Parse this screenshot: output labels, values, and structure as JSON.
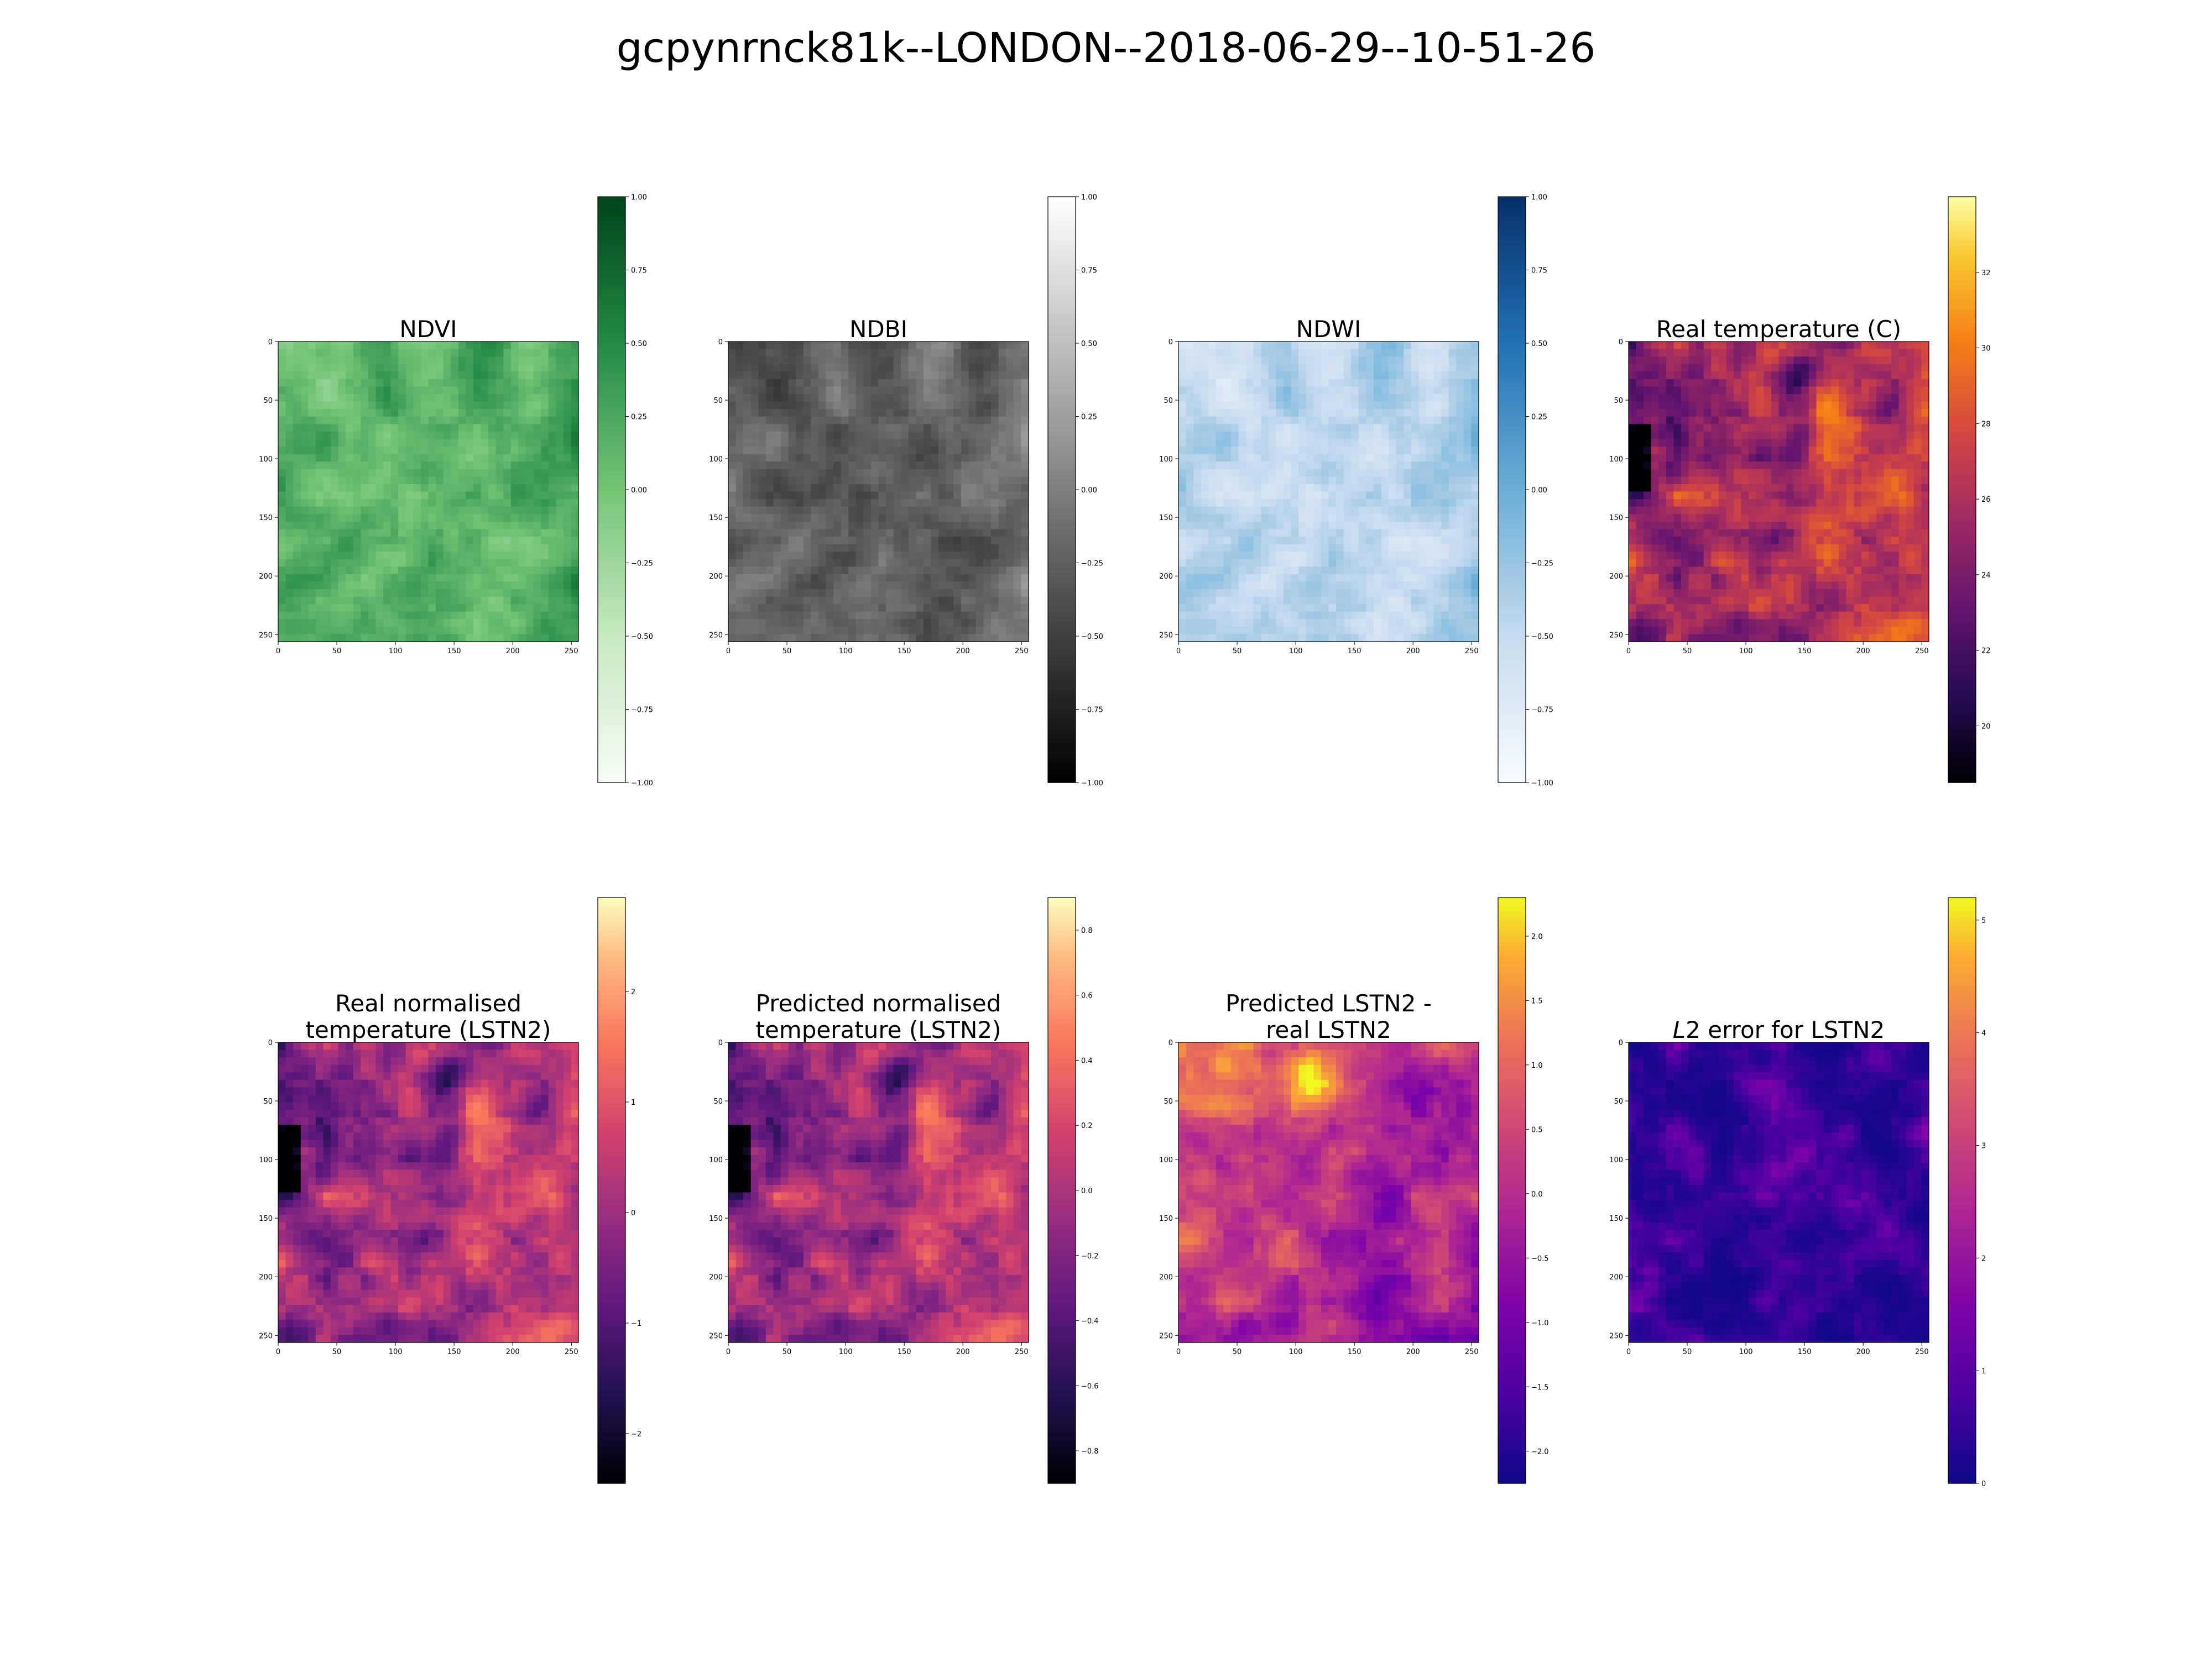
{
  "figure": {
    "title": "gcpynrnck81k--LONDON--2018-06-29--10-51-26"
  },
  "chart_data": [
    {
      "type": "heatmap",
      "title_lines": [
        "NDVI"
      ],
      "colormap": "Greens",
      "x_ticks": [
        0,
        50,
        100,
        150,
        200,
        250
      ],
      "y_ticks": [
        0,
        50,
        100,
        150,
        200,
        250
      ],
      "xlim": [
        0,
        256
      ],
      "ylim": [
        0,
        256
      ],
      "colorbar_range": [
        -1.0,
        1.0
      ],
      "colorbar_ticks": [
        -1.0,
        -0.75,
        -0.5,
        -0.25,
        0.0,
        0.25,
        0.5,
        0.75,
        1.0
      ],
      "colorbar_labels": [
        "−1.00",
        "−0.75",
        "−0.50",
        "−0.25",
        "0.00",
        "0.25",
        "0.50",
        "0.75",
        "1.00"
      ],
      "pattern": "landcover",
      "seed": 3
    },
    {
      "type": "heatmap",
      "title_lines": [
        "NDBI"
      ],
      "colormap": "Greys",
      "x_ticks": [
        0,
        50,
        100,
        150,
        200,
        250
      ],
      "y_ticks": [
        0,
        50,
        100,
        150,
        200,
        250
      ],
      "xlim": [
        0,
        256
      ],
      "ylim": [
        0,
        256
      ],
      "colorbar_range": [
        -1.0,
        1.0
      ],
      "colorbar_ticks": [
        -1.0,
        -0.75,
        -0.5,
        -0.25,
        0.0,
        0.25,
        0.5,
        0.75,
        1.0
      ],
      "colorbar_labels": [
        "−1.00",
        "−0.75",
        "−0.50",
        "−0.25",
        "0.00",
        "0.25",
        "0.50",
        "0.75",
        "1.00"
      ],
      "pattern": "landcover",
      "seed": 3
    },
    {
      "type": "heatmap",
      "title_lines": [
        "NDWI"
      ],
      "colormap": "Blues",
      "x_ticks": [
        0,
        50,
        100,
        150,
        200,
        250
      ],
      "y_ticks": [
        0,
        50,
        100,
        150,
        200,
        250
      ],
      "xlim": [
        0,
        256
      ],
      "ylim": [
        0,
        256
      ],
      "colorbar_range": [
        -1.0,
        1.0
      ],
      "colorbar_ticks": [
        -1.0,
        -0.75,
        -0.5,
        -0.25,
        0.0,
        0.25,
        0.5,
        0.75,
        1.0
      ],
      "colorbar_labels": [
        "−1.00",
        "−0.75",
        "−0.50",
        "−0.25",
        "0.00",
        "0.25",
        "0.50",
        "0.75",
        "1.00"
      ],
      "pattern": "landcover",
      "seed": 3
    },
    {
      "type": "heatmap",
      "title_lines": [
        "Real temperature (C)"
      ],
      "colormap": "inferno",
      "x_ticks": [
        0,
        50,
        100,
        150,
        200,
        250
      ],
      "y_ticks": [
        0,
        50,
        100,
        150,
        200,
        250
      ],
      "xlim": [
        0,
        256
      ],
      "ylim": [
        0,
        256
      ],
      "colorbar_range": [
        18.5,
        34.0
      ],
      "colorbar_ticks": [
        20,
        22,
        24,
        26,
        28,
        30,
        32
      ],
      "colorbar_labels": [
        "20",
        "22",
        "24",
        "26",
        "28",
        "30",
        "32"
      ],
      "pattern": "thermal",
      "seed": 11
    },
    {
      "type": "heatmap",
      "title_lines": [
        "Real normalised",
        "temperature (LSTN2)"
      ],
      "colormap": "magma",
      "x_ticks": [
        0,
        50,
        100,
        150,
        200,
        250
      ],
      "y_ticks": [
        0,
        50,
        100,
        150,
        200,
        250
      ],
      "xlim": [
        0,
        256
      ],
      "ylim": [
        0,
        256
      ],
      "colorbar_range": [
        -2.45,
        2.85
      ],
      "colorbar_ticks": [
        -2,
        -1,
        0,
        1,
        2
      ],
      "colorbar_labels": [
        "−2",
        "−1",
        "0",
        "1",
        "2"
      ],
      "pattern": "thermal",
      "seed": 11
    },
    {
      "type": "heatmap",
      "title_lines": [
        "Predicted normalised",
        "temperature (LSTN2)"
      ],
      "colormap": "magma",
      "x_ticks": [
        0,
        50,
        100,
        150,
        200,
        250
      ],
      "y_ticks": [
        0,
        50,
        100,
        150,
        200,
        250
      ],
      "xlim": [
        0,
        256
      ],
      "ylim": [
        0,
        256
      ],
      "colorbar_range": [
        -0.9,
        0.9
      ],
      "colorbar_ticks": [
        -0.8,
        -0.6,
        -0.4,
        -0.2,
        0.0,
        0.2,
        0.4,
        0.6,
        0.8
      ],
      "colorbar_labels": [
        "−0.8",
        "−0.6",
        "−0.4",
        "−0.2",
        "0.0",
        "0.2",
        "0.4",
        "0.6",
        "0.8"
      ],
      "pattern": "thermal",
      "seed": 11
    },
    {
      "type": "heatmap",
      "title_lines": [
        "Predicted LSTN2 -",
        "real LSTN2"
      ],
      "colormap": "plasma",
      "x_ticks": [
        0,
        50,
        100,
        150,
        200,
        250
      ],
      "y_ticks": [
        0,
        50,
        100,
        150,
        200,
        250
      ],
      "xlim": [
        0,
        256
      ],
      "ylim": [
        0,
        256
      ],
      "colorbar_range": [
        -2.25,
        2.3
      ],
      "colorbar_ticks": [
        -2.0,
        -1.5,
        -1.0,
        -0.5,
        0.0,
        0.5,
        1.0,
        1.5,
        2.0
      ],
      "colorbar_labels": [
        "−2.0",
        "−1.5",
        "−1.0",
        "−0.5",
        "0.0",
        "0.5",
        "1.0",
        "1.5",
        "2.0"
      ],
      "pattern": "diff",
      "seed": 19
    },
    {
      "type": "heatmap",
      "title_lines": [
        "L2 error for LSTN2"
      ],
      "title_italic_prefix": "L",
      "colormap": "plasma",
      "x_ticks": [
        0,
        50,
        100,
        150,
        200,
        250
      ],
      "y_ticks": [
        0,
        50,
        100,
        150,
        200,
        250
      ],
      "xlim": [
        0,
        256
      ],
      "ylim": [
        0,
        256
      ],
      "colorbar_range": [
        0,
        5.2
      ],
      "colorbar_ticks": [
        0,
        1,
        2,
        3,
        4,
        5
      ],
      "colorbar_labels": [
        "0",
        "1",
        "2",
        "3",
        "4",
        "5"
      ],
      "pattern": "error",
      "seed": 23
    }
  ]
}
